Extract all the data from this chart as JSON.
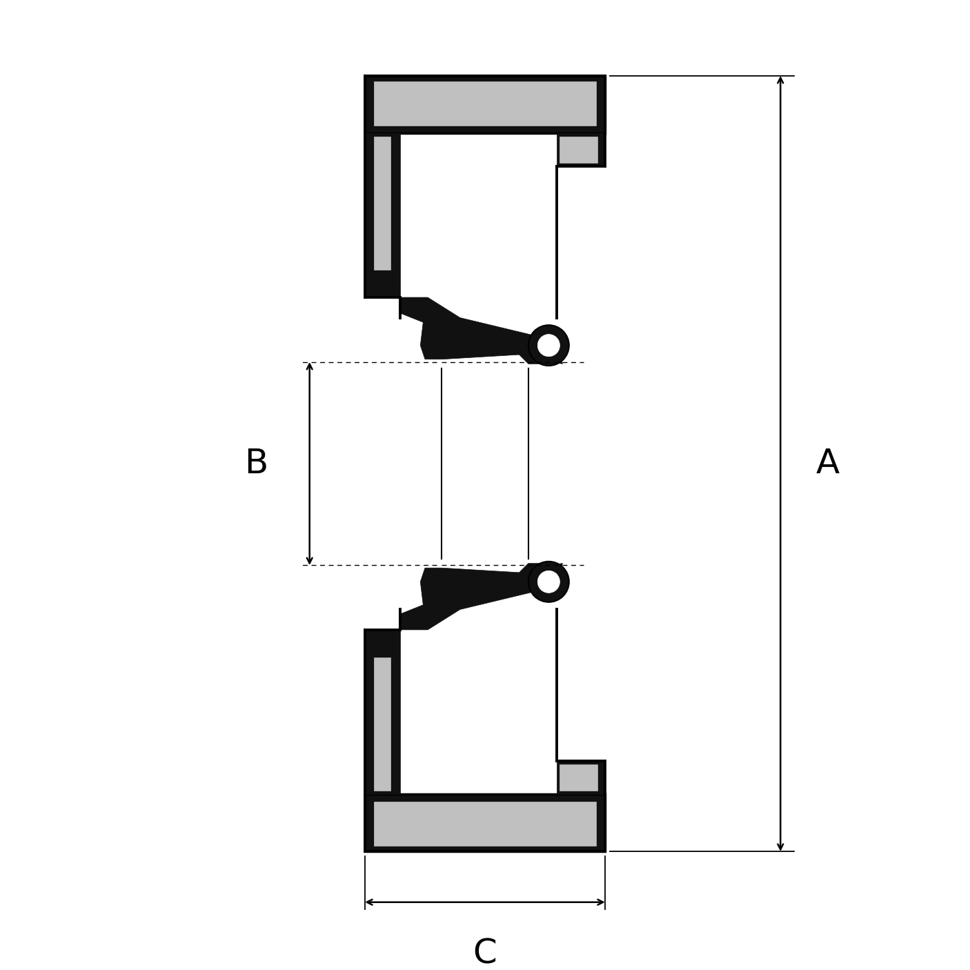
{
  "bg_color": "#ffffff",
  "lc": "#000000",
  "BLACK": "#111111",
  "GRAY": "#c0c0c0",
  "WHITE": "#ffffff",
  "lw_out": 2.5,
  "lw_dim": 1.6,
  "label_A": "A",
  "label_B": "B",
  "label_C": "C",
  "font_size_label": 36
}
